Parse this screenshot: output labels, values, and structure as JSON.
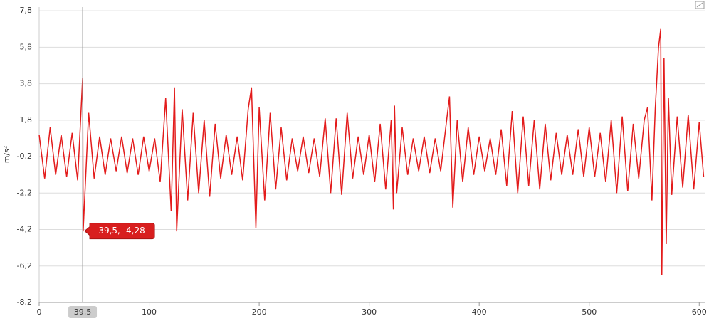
{
  "chart_data": {
    "type": "line",
    "y_label": "m/s²",
    "x": [
      0,
      5,
      10,
      15,
      20,
      25,
      30,
      35,
      39.5,
      40,
      45,
      50,
      55,
      60,
      65,
      70,
      75,
      80,
      85,
      90,
      95,
      100,
      105,
      110,
      115,
      120,
      123,
      125,
      130,
      135,
      140,
      145,
      150,
      155,
      160,
      165,
      170,
      175,
      180,
      185,
      190,
      193,
      197,
      200,
      205,
      210,
      215,
      220,
      225,
      230,
      235,
      240,
      245,
      250,
      255,
      260,
      265,
      270,
      275,
      280,
      285,
      290,
      295,
      300,
      305,
      310,
      315,
      320,
      322,
      323,
      325,
      330,
      335,
      340,
      345,
      350,
      355,
      360,
      365,
      370,
      373,
      376,
      380,
      385,
      390,
      395,
      400,
      405,
      410,
      415,
      420,
      425,
      430,
      435,
      440,
      445,
      450,
      455,
      460,
      465,
      470,
      475,
      480,
      485,
      490,
      495,
      500,
      505,
      510,
      515,
      520,
      525,
      530,
      535,
      540,
      545,
      550,
      553,
      557,
      560,
      563,
      565,
      566,
      568,
      570,
      572,
      575,
      580,
      585,
      590,
      595,
      600,
      604
    ],
    "series": [
      {
        "color": "#e31b1b",
        "values": [
          1.0,
          -1.4,
          1.4,
          -1.2,
          1.0,
          -1.3,
          1.1,
          -1.5,
          4.1,
          -4.3,
          2.2,
          -1.4,
          0.9,
          -1.2,
          0.8,
          -1.0,
          0.9,
          -1.1,
          0.8,
          -1.2,
          0.9,
          -1.0,
          0.8,
          -1.6,
          3.0,
          -3.2,
          3.6,
          -4.3,
          2.4,
          -2.6,
          2.2,
          -2.2,
          1.8,
          -2.4,
          1.6,
          -1.4,
          1.0,
          -1.2,
          0.9,
          -1.5,
          2.4,
          3.6,
          -4.1,
          2.5,
          -2.6,
          2.2,
          -2.0,
          1.4,
          -1.5,
          0.8,
          -1.0,
          0.9,
          -1.1,
          0.8,
          -1.3,
          1.9,
          -2.2,
          1.9,
          -2.3,
          2.2,
          -1.4,
          0.9,
          -1.2,
          1.0,
          -1.6,
          1.6,
          -2.0,
          1.8,
          -3.1,
          2.6,
          -2.2,
          1.4,
          -1.2,
          0.8,
          -1.0,
          0.9,
          -1.1,
          0.8,
          -1.0,
          1.6,
          3.1,
          -3.0,
          1.8,
          -1.6,
          1.4,
          -1.2,
          0.9,
          -1.0,
          0.8,
          -1.2,
          1.3,
          -1.8,
          2.3,
          -2.2,
          2.0,
          -1.8,
          1.8,
          -2.0,
          1.6,
          -1.5,
          1.1,
          -1.2,
          1.0,
          -1.2,
          1.3,
          -1.3,
          1.4,
          -1.3,
          1.1,
          -1.6,
          1.8,
          -2.2,
          2.0,
          -2.1,
          1.6,
          -1.4,
          1.8,
          2.5,
          -2.6,
          2.4,
          5.8,
          6.8,
          -6.7,
          5.2,
          -5.0,
          3.0,
          -2.3,
          2.0,
          -1.9,
          2.1,
          -2.0,
          1.7,
          -1.3
        ]
      }
    ],
    "xlim": [
      0,
      605
    ],
    "xticks": [
      0,
      100,
      200,
      300,
      400,
      500,
      600
    ],
    "ylim": [
      -8.2,
      8.0
    ],
    "yticks": [
      {
        "value": 7.8,
        "label": "7,8"
      },
      {
        "value": 5.8,
        "label": "5,8"
      },
      {
        "value": 3.8,
        "label": "3,8"
      },
      {
        "value": 1.8,
        "label": "1,8"
      },
      {
        "value": -0.2,
        "label": "-0,2"
      },
      {
        "value": -2.2,
        "label": "-2,2"
      },
      {
        "value": -4.2,
        "label": "-4,2"
      },
      {
        "value": -6.2,
        "label": "-6,2"
      },
      {
        "value": -8.2,
        "label": "-8,2"
      }
    ],
    "grid": true,
    "crosshair": {
      "x": {
        "value": 39.5,
        "label": "39,5"
      },
      "y": -4.28,
      "tooltip": "39,5, -4,28"
    }
  }
}
